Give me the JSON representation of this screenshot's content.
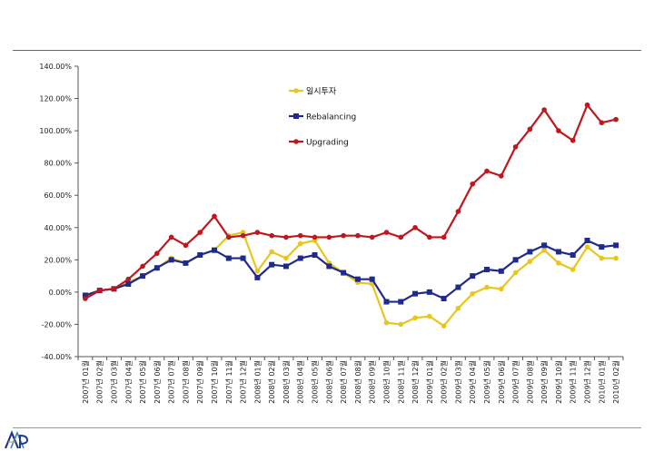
{
  "chart_data": {
    "type": "line",
    "title": "",
    "xlabel": "",
    "ylabel": "",
    "ylim": [
      -40,
      140
    ],
    "y_ticks": [
      -40,
      -20,
      0,
      20,
      40,
      60,
      80,
      100,
      120,
      140
    ],
    "y_tick_labels": [
      "-40.00%",
      "-20.00%",
      "0.00%",
      "20.00%",
      "40.00%",
      "60.00%",
      "80.00%",
      "100.00%",
      "120.00%",
      "140.00%"
    ],
    "grid": false,
    "legend_position": "top-center",
    "categories": [
      "2007년 01월",
      "2007년 02월",
      "2007년 03월",
      "2007년 04월",
      "2007년 05월",
      "2007년 06월",
      "2007년 07월",
      "2007년 08월",
      "2007년 09월",
      "2007년 10월",
      "2007년 11월",
      "2007년 12월",
      "2008년 01월",
      "2008년 02월",
      "2008년 03월",
      "2008년 04월",
      "2008년 05월",
      "2008년 06월",
      "2008년 07월",
      "2008년 08월",
      "2008년 09월",
      "2008년 10월",
      "2008년 11월",
      "2008년 12월",
      "2009년 01월",
      "2009년 02월",
      "2009년 03월",
      "2009년 04월",
      "2009년 05월",
      "2009년 06월",
      "2009년 07월",
      "2009년 08월",
      "2009년 09월",
      "2009년 10월",
      "2009년 11월",
      "2009년 12월",
      "2010년 01월",
      "2010년 02월"
    ],
    "series": [
      {
        "name": "일시투자",
        "color": "#e8c51f",
        "marker": "circle",
        "values": [
          -2,
          1,
          2,
          6,
          10,
          15,
          21,
          18,
          23,
          26,
          35,
          37,
          13,
          25,
          21,
          30,
          32,
          18,
          12,
          6,
          5,
          -19,
          -20,
          -16,
          -15,
          -21,
          -10,
          -1,
          3,
          2,
          12,
          19,
          26,
          18,
          14,
          28,
          21,
          21
        ]
      },
      {
        "name": "Rebalancing",
        "color": "#1f2a8c",
        "marker": "square",
        "values": [
          -2,
          1,
          2,
          5,
          10,
          15,
          20,
          18,
          23,
          26,
          21,
          21,
          9,
          17,
          16,
          21,
          23,
          16,
          12,
          8,
          8,
          -6,
          -6,
          -1,
          0,
          -4,
          3,
          10,
          14,
          13,
          20,
          25,
          29,
          25,
          23,
          32,
          28,
          29
        ]
      },
      {
        "name": "Upgrading",
        "color": "#c0161d",
        "marker": "circle",
        "values": [
          -4,
          1,
          2,
          8,
          16,
          24,
          34,
          29,
          37,
          47,
          34,
          35,
          37,
          35,
          34,
          35,
          34,
          34,
          35,
          35,
          34,
          37,
          34,
          40,
          34,
          34,
          50,
          67,
          75,
          72,
          90,
          101,
          113,
          100,
          94,
          116,
          105,
          107
        ]
      }
    ]
  }
}
